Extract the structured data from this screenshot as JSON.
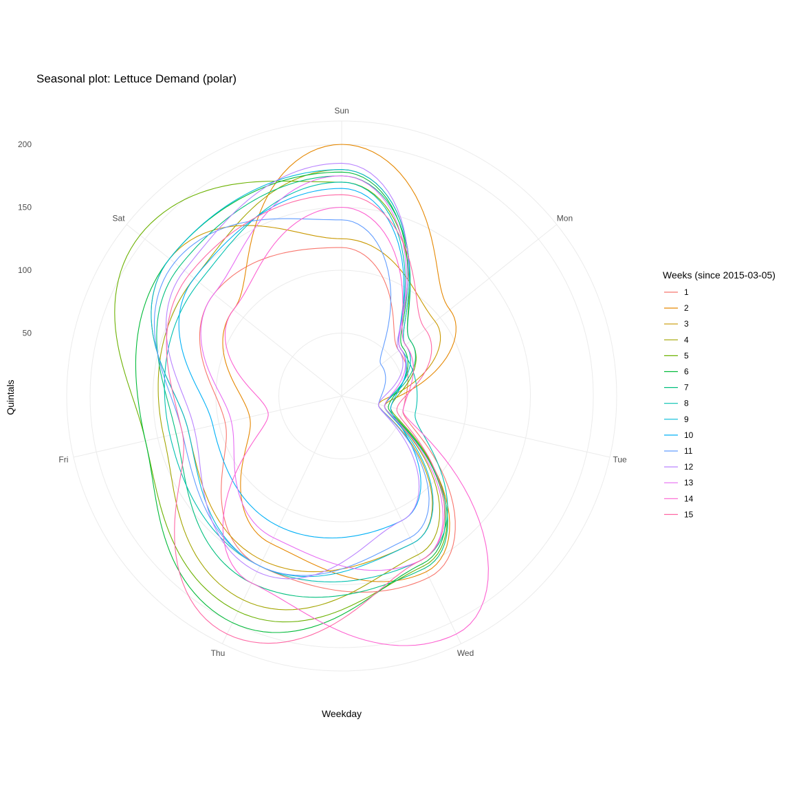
{
  "chart_data": {
    "type": "line",
    "coordinates": "polar",
    "title": "Seasonal plot: Lettuce Demand (polar)",
    "xlabel": "Weekday",
    "ylabel": "Quintals",
    "categories": [
      "Sun",
      "Mon",
      "Tue",
      "Wed",
      "Thu",
      "Fri",
      "Sat"
    ],
    "r_ticks": [
      50,
      100,
      150,
      200
    ],
    "rlim": [
      0,
      215
    ],
    "grid": true,
    "legend": {
      "title": "Weeks (since 2015-03-05)",
      "position": "right"
    },
    "series": [
      {
        "name": "1",
        "color": "#F8766D",
        "values": [
          118,
          58,
          50,
          160,
          150,
          95,
          130
        ]
      },
      {
        "name": "2",
        "color": "#E58700",
        "values": [
          200,
          110,
          35,
          155,
          130,
          75,
          110
        ]
      },
      {
        "name": "3",
        "color": "#C99800",
        "values": [
          125,
          95,
          30,
          130,
          145,
          125,
          175
        ]
      },
      {
        "name": "4",
        "color": "#A3A500",
        "values": [
          180,
          65,
          35,
          140,
          180,
          145,
          150
        ]
      },
      {
        "name": "5",
        "color": "#6BB100",
        "values": [
          170,
          70,
          40,
          150,
          190,
          160,
          205
        ]
      },
      {
        "name": "6",
        "color": "#00BA38",
        "values": [
          178,
          62,
          38,
          148,
          200,
          160,
          175
        ]
      },
      {
        "name": "7",
        "color": "#00BF7D",
        "values": [
          175,
          70,
          35,
          152,
          165,
          135,
          165
        ]
      },
      {
        "name": "8",
        "color": "#00C0AF",
        "values": [
          170,
          60,
          60,
          145,
          150,
          140,
          145
        ]
      },
      {
        "name": "9",
        "color": "#00BCD8",
        "values": [
          180,
          65,
          35,
          130,
          150,
          125,
          175
        ]
      },
      {
        "name": "10",
        "color": "#00B0F6",
        "values": [
          165,
          60,
          40,
          110,
          115,
          105,
          150
        ]
      },
      {
        "name": "11",
        "color": "#619CFF",
        "values": [
          140,
          40,
          30,
          125,
          150,
          130,
          170
        ]
      },
      {
        "name": "12",
        "color": "#B983FF",
        "values": [
          185,
          58,
          30,
          110,
          155,
          120,
          160
        ]
      },
      {
        "name": "13",
        "color": "#E76BF3",
        "values": [
          175,
          60,
          35,
          145,
          125,
          90,
          130
        ]
      },
      {
        "name": "14",
        "color": "#FD61D1",
        "values": [
          150,
          65,
          50,
          210,
          165,
          60,
          110
        ]
      },
      {
        "name": "15",
        "color": "#FF67A4",
        "values": [
          160,
          85,
          45,
          145,
          210,
          130,
          155
        ]
      }
    ]
  }
}
